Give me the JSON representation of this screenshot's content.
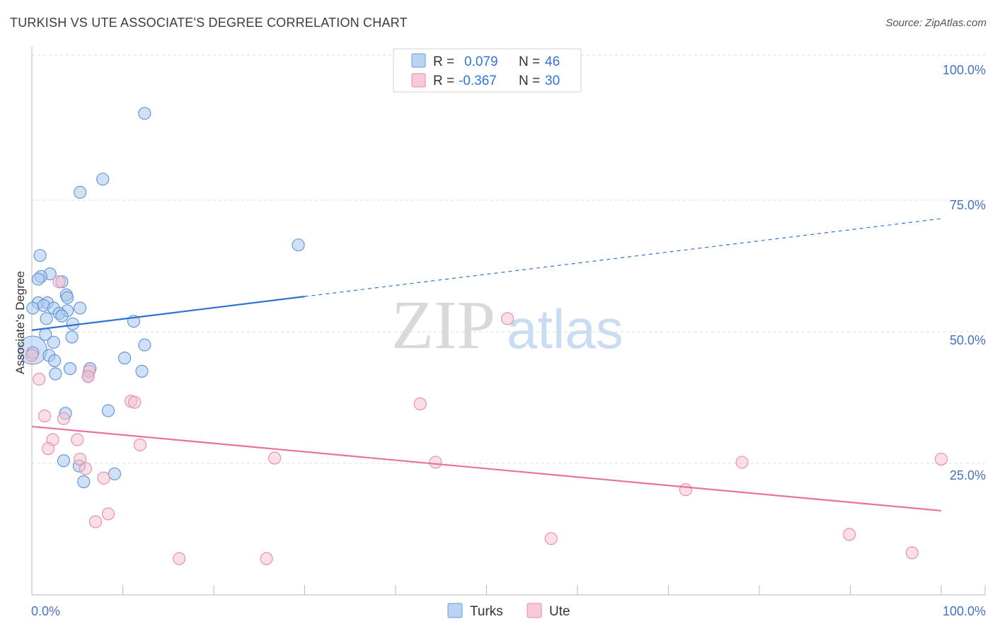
{
  "title": "TURKISH VS UTE ASSOCIATE'S DEGREE CORRELATION CHART",
  "source": "Source: ZipAtlas.com",
  "watermark": {
    "zip": "ZIP",
    "atlas": "atlas"
  },
  "colors": {
    "turks_fill": "#a9c8f0",
    "turks_stroke": "#5b92d6",
    "turks_line": "#2e72d2",
    "ute_fill": "#f6bfd0",
    "ute_stroke": "#e88aa8",
    "ute_line": "#e8739a",
    "grid": "#dddddd",
    "axis_text": "#4472c4"
  },
  "legend_top": {
    "rows": [
      {
        "r_label": "R =",
        "r_value": "0.079",
        "n_label": "N =",
        "n_value": "46",
        "series": "turks"
      },
      {
        "r_label": "R =",
        "r_value": "-0.367",
        "n_label": "N =",
        "n_value": "30",
        "series": "ute"
      }
    ]
  },
  "legend_bottom": {
    "turks": "Turks",
    "ute": "Ute"
  },
  "chart_data": {
    "type": "scatter",
    "title": "TURKISH VS UTE ASSOCIATE'S DEGREE CORRELATION CHART",
    "xlabel": "",
    "ylabel": "Associate's Degree",
    "xlim": [
      0,
      100
    ],
    "ylim": [
      0,
      100
    ],
    "x_tick_labels": [
      "0.0%",
      "100.0%"
    ],
    "y_tick_labels": [
      "25.0%",
      "50.0%",
      "75.0%",
      "100.0%"
    ],
    "y_ticks": [
      25,
      50,
      75,
      100
    ],
    "series": [
      {
        "name": "Turks",
        "r": 0.079,
        "n": 46,
        "trend": {
          "x0": 0,
          "y0": 50.3,
          "x1": 30,
          "y1": 56.7,
          "dashed_to_x": 100,
          "dashed_to_y": 71.5
        },
        "points": [
          [
            12.4,
            91.5
          ],
          [
            7.8,
            79.0
          ],
          [
            5.3,
            76.5
          ],
          [
            29.3,
            66.5
          ],
          [
            0.9,
            64.5
          ],
          [
            2.0,
            61.0
          ],
          [
            1.0,
            60.5
          ],
          [
            0.7,
            60.0
          ],
          [
            3.3,
            59.5
          ],
          [
            3.8,
            57.0
          ],
          [
            3.9,
            56.5
          ],
          [
            0.7,
            55.5
          ],
          [
            1.7,
            55.5
          ],
          [
            1.3,
            55.0
          ],
          [
            0.1,
            54.5
          ],
          [
            2.4,
            54.5
          ],
          [
            5.3,
            54.5
          ],
          [
            3.9,
            54.0
          ],
          [
            3.0,
            53.5
          ],
          [
            3.3,
            53.0
          ],
          [
            1.6,
            52.5
          ],
          [
            11.2,
            52.0
          ],
          [
            4.5,
            51.5
          ],
          [
            1.5,
            49.5
          ],
          [
            4.4,
            49.0
          ],
          [
            2.4,
            48.0
          ],
          [
            12.4,
            47.5
          ],
          [
            0.1,
            46.0
          ],
          [
            1.9,
            45.5
          ],
          [
            10.2,
            45.0
          ],
          [
            2.5,
            44.5
          ],
          [
            4.2,
            43.0
          ],
          [
            6.4,
            43.0
          ],
          [
            12.1,
            42.5
          ],
          [
            2.6,
            42.0
          ],
          [
            6.2,
            41.5
          ],
          [
            8.4,
            35.0
          ],
          [
            3.7,
            34.5
          ],
          [
            3.5,
            25.5
          ],
          [
            5.2,
            24.5
          ],
          [
            9.1,
            23.0
          ],
          [
            5.7,
            21.5
          ]
        ],
        "large_point": [
          0.1,
          46.5
        ]
      },
      {
        "name": "Ute",
        "r": -0.367,
        "n": 30,
        "trend": {
          "x0": 0,
          "y0": 32.0,
          "x1": 100,
          "y1": 16.0
        },
        "points": [
          [
            3.0,
            59.5
          ],
          [
            52.3,
            52.5
          ],
          [
            0.0,
            45.5
          ],
          [
            6.3,
            42.5
          ],
          [
            6.2,
            41.5
          ],
          [
            0.8,
            41.0
          ],
          [
            10.9,
            36.8
          ],
          [
            11.3,
            36.6
          ],
          [
            42.7,
            36.3
          ],
          [
            1.4,
            34.0
          ],
          [
            3.5,
            33.5
          ],
          [
            2.3,
            29.5
          ],
          [
            5.0,
            29.5
          ],
          [
            11.9,
            28.5
          ],
          [
            1.8,
            27.8
          ],
          [
            26.7,
            26.0
          ],
          [
            100.0,
            25.8
          ],
          [
            5.3,
            25.8
          ],
          [
            44.4,
            25.2
          ],
          [
            78.1,
            25.2
          ],
          [
            5.9,
            24.0
          ],
          [
            7.9,
            22.2
          ],
          [
            71.9,
            20.0
          ],
          [
            8.4,
            15.4
          ],
          [
            7.0,
            13.9
          ],
          [
            89.9,
            11.5
          ],
          [
            57.1,
            10.7
          ],
          [
            96.8,
            8.0
          ],
          [
            16.2,
            6.9
          ],
          [
            25.8,
            6.9
          ]
        ]
      }
    ]
  }
}
